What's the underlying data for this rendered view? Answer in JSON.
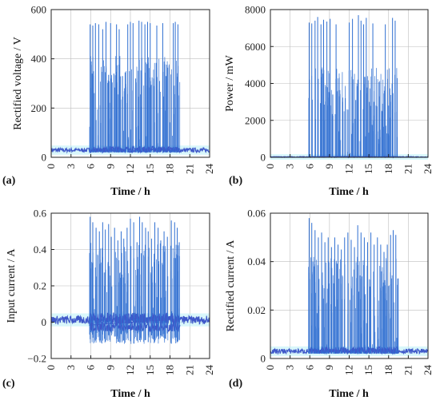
{
  "figure": {
    "series_color": "#2f6fd1",
    "band_color": "#3f58c9",
    "glow_color": "#b9f1f8"
  },
  "chart_data": [
    {
      "panel": "(a)",
      "type": "line",
      "xlabel": "Time / h",
      "ylabel": "Rectified voltage / V",
      "xlim": [
        0,
        24
      ],
      "ylim": [
        0,
        600
      ],
      "xticks": [
        "0",
        "3",
        "6",
        "9",
        "12",
        "15",
        "18",
        "21",
        "24"
      ],
      "yticks": [
        "0",
        "200",
        "400",
        "600"
      ],
      "grid": true,
      "series": [
        {
          "baseline": [
            20,
            38
          ],
          "active_window": [
            5.8,
            19.5
          ],
          "peaks": [
            [
              5.9,
              540
            ],
            [
              6.3,
              535
            ],
            [
              6.7,
              545
            ],
            [
              7.2,
              540
            ],
            [
              7.8,
              520
            ],
            [
              8.3,
              550
            ],
            [
              8.7,
              335
            ],
            [
              9.0,
              545
            ],
            [
              9.5,
              340
            ],
            [
              9.9,
              540
            ],
            [
              10.3,
              520
            ],
            [
              10.8,
              330
            ],
            [
              11.2,
              345
            ],
            [
              11.6,
              540
            ],
            [
              12.0,
              550
            ],
            [
              12.4,
              545
            ],
            [
              12.8,
              320
            ],
            [
              13.3,
              555
            ],
            [
              13.7,
              550
            ],
            [
              14.2,
              540
            ],
            [
              14.6,
              550
            ],
            [
              15.0,
              545
            ],
            [
              15.5,
              320
            ],
            [
              16.0,
              535
            ],
            [
              16.4,
              310
            ],
            [
              16.9,
              545
            ],
            [
              17.4,
              330
            ],
            [
              18.5,
              545
            ],
            [
              18.8,
              550
            ],
            [
              19.2,
              540
            ]
          ]
        }
      ]
    },
    {
      "panel": "(b)",
      "type": "line",
      "xlabel": "Time / h",
      "ylabel": "Power / mW",
      "xlim": [
        0,
        24
      ],
      "ylim": [
        0,
        8000
      ],
      "xticks": [
        "0",
        "3",
        "6",
        "9",
        "12",
        "15",
        "18",
        "21",
        "24"
      ],
      "yticks": [
        "0",
        "2000",
        "4000",
        "6000",
        "8000"
      ],
      "grid": true,
      "series": [
        {
          "baseline": [
            0,
            40
          ],
          "active_window": [
            5.8,
            19.5
          ],
          "peaks": [
            [
              5.9,
              7300
            ],
            [
              6.3,
              7250
            ],
            [
              6.8,
              7400
            ],
            [
              7.2,
              7600
            ],
            [
              7.7,
              7200
            ],
            [
              8.1,
              7450
            ],
            [
              8.6,
              7350
            ],
            [
              9.1,
              7500
            ],
            [
              9.5,
              3400
            ],
            [
              10.0,
              7200
            ],
            [
              10.5,
              3300
            ],
            [
              11.0,
              3000
            ],
            [
              11.4,
              3200
            ],
            [
              12.0,
              7300
            ],
            [
              12.5,
              7500
            ],
            [
              13.0,
              3100
            ],
            [
              13.4,
              7700
            ],
            [
              13.8,
              7400
            ],
            [
              14.2,
              7200
            ],
            [
              14.6,
              7550
            ],
            [
              15.1,
              3000
            ],
            [
              15.6,
              7250
            ],
            [
              16.1,
              2800
            ],
            [
              16.6,
              3300
            ],
            [
              17.1,
              2900
            ],
            [
              17.5,
              7200
            ],
            [
              18.0,
              2800
            ],
            [
              18.6,
              7550
            ],
            [
              19.0,
              7400
            ],
            [
              19.3,
              1100
            ]
          ]
        }
      ]
    },
    {
      "panel": "(c)",
      "type": "line",
      "xlabel": "Time / h",
      "ylabel": "Input current / A",
      "xlim": [
        0,
        24
      ],
      "ylim": [
        -0.2,
        0.6
      ],
      "xticks": [
        "0",
        "3",
        "6",
        "9",
        "12",
        "15",
        "18",
        "21",
        "24"
      ],
      "yticks": [
        "−0.2",
        "0",
        "0.2",
        "0.4",
        "0.6"
      ],
      "grid": true,
      "series": [
        {
          "baseline": [
            -0.01,
            0.035
          ],
          "active_window": [
            5.8,
            19.5
          ],
          "peaks": [
            [
              5.9,
              0.58
            ],
            [
              6.3,
              0.55
            ],
            [
              6.8,
              0.52
            ],
            [
              7.3,
              0.5
            ],
            [
              7.8,
              0.55
            ],
            [
              8.2,
              0.51
            ],
            [
              8.7,
              0.54
            ],
            [
              9.1,
              0.47
            ],
            [
              9.6,
              0.52
            ],
            [
              10.1,
              0.45
            ],
            [
              10.6,
              0.5
            ],
            [
              11.0,
              0.46
            ],
            [
              11.5,
              0.52
            ],
            [
              12.0,
              0.57
            ],
            [
              12.5,
              0.55
            ],
            [
              13.0,
              0.44
            ],
            [
              13.4,
              0.58
            ],
            [
              13.8,
              0.55
            ],
            [
              14.3,
              0.52
            ],
            [
              14.7,
              0.5
            ],
            [
              15.2,
              0.46
            ],
            [
              15.7,
              0.55
            ],
            [
              16.2,
              0.52
            ],
            [
              16.6,
              0.45
            ],
            [
              17.1,
              0.5
            ],
            [
              17.6,
              0.47
            ],
            [
              18.2,
              0.56
            ],
            [
              18.7,
              0.55
            ],
            [
              19.1,
              0.52
            ],
            [
              19.4,
              0.44
            ]
          ],
          "troughs": [
            -0.12,
            -0.05
          ]
        }
      ]
    },
    {
      "panel": "(d)",
      "type": "line",
      "xlabel": "Time / h",
      "ylabel": "Rectified current / A",
      "xlim": [
        0,
        24
      ],
      "ylim": [
        0,
        0.06
      ],
      "xticks": [
        "0",
        "3",
        "6",
        "9",
        "12",
        "15",
        "18",
        "21",
        "24"
      ],
      "yticks": [
        "0",
        "0.02",
        "0.04",
        "0.06"
      ],
      "grid": true,
      "series": [
        {
          "baseline": [
            0.002,
            0.004
          ],
          "active_window": [
            5.8,
            19.5
          ],
          "peaks": [
            [
              5.9,
              0.058
            ],
            [
              6.3,
              0.056
            ],
            [
              6.8,
              0.053
            ],
            [
              7.3,
              0.05
            ],
            [
              7.8,
              0.052
            ],
            [
              8.3,
              0.048
            ],
            [
              8.8,
              0.05
            ],
            [
              9.3,
              0.046
            ],
            [
              9.8,
              0.05
            ],
            [
              10.3,
              0.047
            ],
            [
              10.8,
              0.045
            ],
            [
              11.3,
              0.05
            ],
            [
              11.8,
              0.052
            ],
            [
              12.3,
              0.049
            ],
            [
              12.8,
              0.046
            ],
            [
              13.3,
              0.055
            ],
            [
              13.8,
              0.052
            ],
            [
              14.3,
              0.05
            ],
            [
              14.8,
              0.048
            ],
            [
              15.3,
              0.052
            ],
            [
              15.8,
              0.047
            ],
            [
              16.3,
              0.05
            ],
            [
              16.8,
              0.047
            ],
            [
              17.3,
              0.044
            ],
            [
              17.8,
              0.047
            ],
            [
              18.3,
              0.051
            ],
            [
              18.7,
              0.053
            ],
            [
              19.1,
              0.051
            ],
            [
              19.4,
              0.033
            ]
          ]
        }
      ]
    }
  ]
}
